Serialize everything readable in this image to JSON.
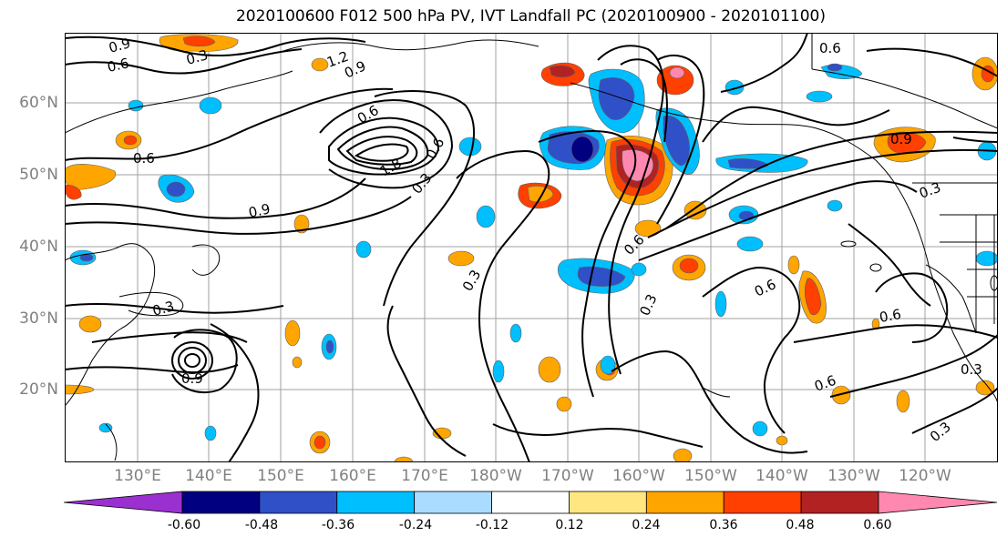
{
  "title": "2020100600 F012 500 hPa PV, IVT Landfall PC (2020100900 - 2020101100)",
  "lat_labels": [
    "60°N",
    "50°N",
    "40°N",
    "30°N",
    "20°N"
  ],
  "lon_labels": [
    "130°E",
    "140°E",
    "150°E",
    "160°E",
    "170°E",
    "180°W",
    "170°W",
    "160°W",
    "150°W",
    "140°W",
    "130°W",
    "120°W"
  ],
  "contour_labels": [
    "0.9",
    "0.6",
    "0.3",
    "1.2",
    "0.9",
    "0.6",
    "0.9",
    "0.3",
    "0.6",
    "1.8",
    "0.3",
    "0.6",
    "0.3",
    "0.6",
    "0.6",
    "0.3",
    "0.6",
    "0.9",
    "0.3",
    "0.6",
    "0.3",
    "0.9",
    "0.6",
    "0.3"
  ],
  "colorbar": {
    "colors": [
      "#9b30d0",
      "#000080",
      "#3050c8",
      "#00bfff",
      "#aadcff",
      "#ffffff",
      "#ffe680",
      "#ffa500",
      "#ff4000",
      "#b22222",
      "#ff88b0"
    ],
    "tick_labels": [
      "-0.60",
      "-0.48",
      "-0.36",
      "-0.24",
      "-0.12",
      "0.12",
      "0.24",
      "0.36",
      "0.48",
      "0.60"
    ]
  }
}
